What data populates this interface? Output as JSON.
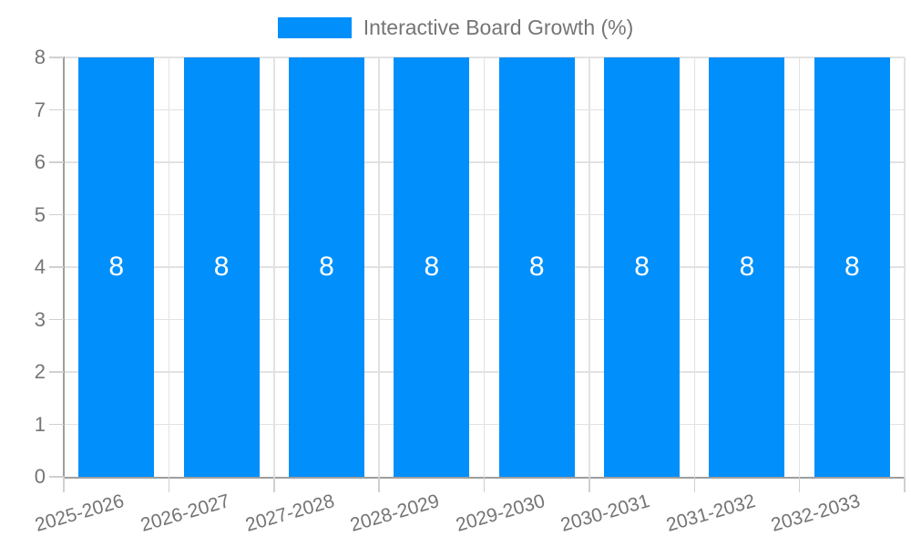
{
  "legend": {
    "label": "Interactive Board Growth (%)"
  },
  "chart_data": {
    "type": "bar",
    "title": "",
    "categories": [
      "2025-2026",
      "2026-2027",
      "2027-2028",
      "2028-2029",
      "2029-2030",
      "2030-2031",
      "2031-2032",
      "2032-2033"
    ],
    "series": [
      {
        "name": "Interactive Board Growth (%)",
        "values": [
          8,
          8,
          8,
          8,
          8,
          8,
          8,
          8
        ]
      }
    ],
    "value_labels": [
      "8",
      "8",
      "8",
      "8",
      "8",
      "8",
      "8",
      "8"
    ],
    "xlabel": "",
    "ylabel": "",
    "ylim": [
      0,
      8
    ],
    "ytick_step": 1,
    "yticks": [
      "0",
      "1",
      "2",
      "3",
      "4",
      "5",
      "6",
      "7",
      "8"
    ],
    "grid": true,
    "legend_position": "top",
    "x_label_rotation_deg": -16,
    "colors": {
      "bar": "#008FFB",
      "grid": "#E2E2E2",
      "tick": "#D0D0D0",
      "axis": "#9E9E9E",
      "text": "#757575",
      "value_label": "#FFFFFF",
      "background": "#FFFFFF"
    }
  }
}
